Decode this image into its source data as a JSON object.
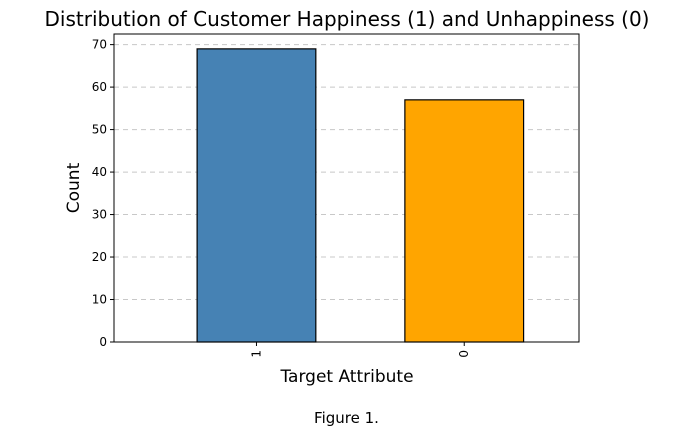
{
  "chart_data": {
    "type": "bar",
    "title": "Distribution of Customer Happiness (1) and Unhappiness (0)",
    "xlabel": "Target Attribute",
    "ylabel": "Count",
    "categories": [
      "1",
      "0"
    ],
    "values": [
      69,
      57
    ],
    "colors": [
      "#4682b4",
      "#ffa500"
    ],
    "ylim": [
      0,
      72.5
    ],
    "yticks": [
      "0",
      "10",
      "20",
      "30",
      "40",
      "50",
      "60",
      "70"
    ],
    "grid": "y-dashed",
    "legend": "none"
  },
  "caption": "Figure 1."
}
